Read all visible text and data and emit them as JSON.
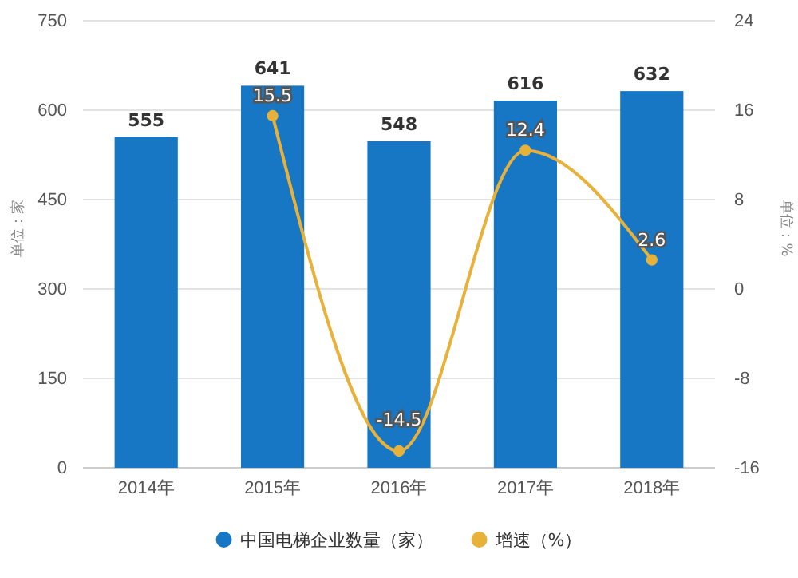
{
  "chart_data": {
    "type": "bar",
    "ylabel": "单位：家",
    "y2label": "单位：%",
    "categories": [
      "2014年",
      "2015年",
      "2016年",
      "2017年",
      "2018年"
    ],
    "series": [
      {
        "name": "中国电梯企业数量（家）",
        "color": "#1777c4",
        "values": [
          555,
          641,
          548,
          616,
          632
        ]
      },
      {
        "name": "增速（%）",
        "type": "line",
        "axis": "y2",
        "color": "#e8b13a",
        "marker": "circle",
        "values": [
          null,
          15.5,
          -14.5,
          12.4,
          2.6
        ]
      }
    ],
    "ylim": [
      0,
      750
    ],
    "yticks": [
      0,
      150,
      300,
      450,
      600,
      750
    ],
    "y2lim": [
      -16,
      24
    ],
    "y2ticks": [
      -16,
      -8,
      0,
      8,
      16,
      24
    ],
    "grid": "y",
    "legend": "bottom",
    "data_labels": true
  }
}
